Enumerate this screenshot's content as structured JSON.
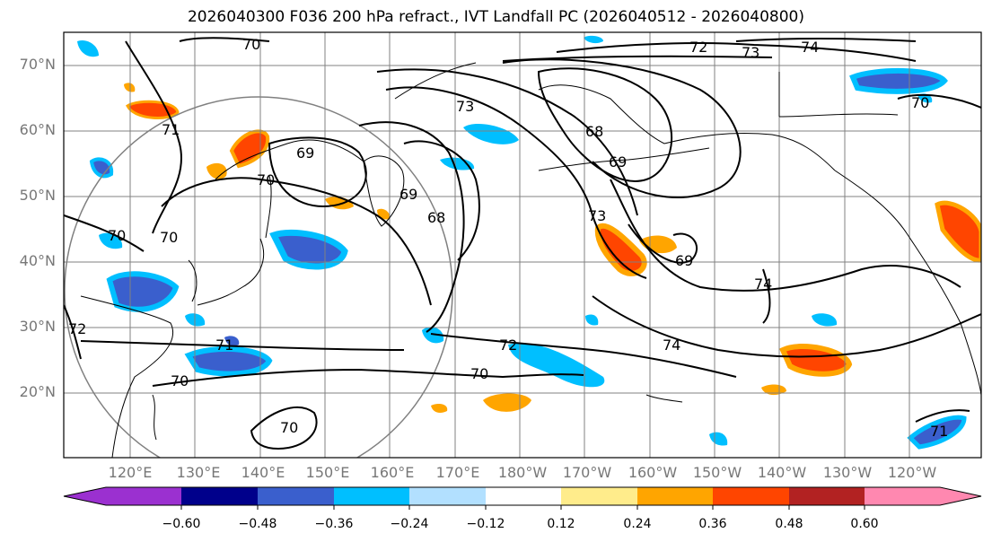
{
  "title": "2026040300 F036 200 hPa refract., IVT Landfall PC (2026040512 - 2026040800)",
  "lat_labels": [
    "70°N",
    "60°N",
    "50°N",
    "40°N",
    "30°N",
    "20°N"
  ],
  "lon_labels": [
    "120°E",
    "130°E",
    "140°E",
    "150°E",
    "160°E",
    "170°E",
    "180°W",
    "170°W",
    "160°W",
    "150°W",
    "140°W",
    "130°W",
    "120°W"
  ],
  "colorbar": {
    "ticks": [
      "−0.60",
      "−0.48",
      "−0.36",
      "−0.24",
      "−0.12",
      "0.12",
      "0.24",
      "0.36",
      "0.48",
      "0.60"
    ],
    "colors": [
      "#9b30d0",
      "#00008b",
      "#3a5fcd",
      "#00bfff",
      "#b2e0ff",
      "#ffffff",
      "#ffec8b",
      "#ffa500",
      "#ff4500",
      "#b22222",
      "#ff88b0"
    ]
  },
  "contour_labels": [
    "70",
    "72",
    "73",
    "74",
    "70",
    "73",
    "68",
    "71",
    "69",
    "69",
    "70",
    "70",
    "69",
    "68",
    "73",
    "69",
    "74",
    "70",
    "72",
    "71",
    "70",
    "74",
    "70",
    "72",
    "71"
  ],
  "colors": {
    "frame": "#000000",
    "grid": "#808080",
    "coast": "#000000",
    "circle": "#808080"
  }
}
